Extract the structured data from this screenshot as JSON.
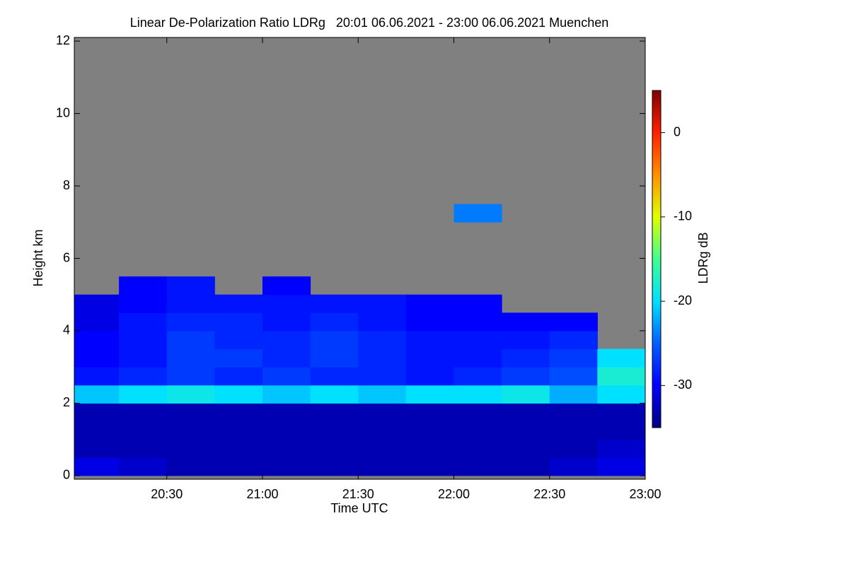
{
  "chart_data": {
    "type": "heatmap",
    "title": "Linear De-Polarization Ratio LDRg   20:01 06.06.2021 - 23:00 06.06.2021 Muenchen",
    "xlabel": "Time UTC",
    "ylabel": "Height km",
    "colorbar_label": "LDRg dB",
    "x": [
      20.125,
      20.375,
      20.625,
      20.875,
      21.125,
      21.375,
      21.625,
      21.875,
      22.125,
      22.375,
      22.625,
      22.875
    ],
    "y": [
      0.25,
      0.75,
      1.25,
      1.75,
      2.25,
      2.75,
      3.25,
      3.75,
      4.25,
      4.75,
      5.25,
      5.75,
      6.25,
      6.75,
      7.25,
      7.75,
      8.25,
      8.75,
      9.25,
      9.75,
      10.25,
      10.75,
      11.25,
      11.75
    ],
    "z": [
      [
        -31,
        -32,
        -33,
        -33,
        -33,
        -33,
        -33,
        -33,
        -33,
        -33,
        -32,
        -31
      ],
      [
        -33,
        -33,
        -33,
        -33,
        -33,
        -33,
        -33,
        -33,
        -33,
        -33,
        -33,
        -32
      ],
      [
        -33,
        -33,
        -33,
        -33,
        -33,
        -33,
        -33,
        -33,
        -33,
        -33,
        -33,
        -33
      ],
      [
        -33,
        -33,
        -33,
        -33,
        -33,
        -33,
        -33,
        -33,
        -33,
        -33,
        -33,
        -33
      ],
      [
        -21,
        -20,
        -19,
        -20,
        -21,
        -20,
        -21,
        -20,
        -20,
        -19,
        -22,
        -20
      ],
      [
        -29,
        -28,
        -27,
        -28,
        -27,
        -28,
        -28,
        -29,
        -28,
        -27,
        -26,
        -18
      ],
      [
        -30,
        -29,
        -27,
        -27,
        -28,
        -27,
        -28,
        -29,
        -29,
        -28,
        -27,
        -20
      ],
      [
        -30,
        -29,
        -27,
        -28,
        -28,
        -27,
        -28,
        -29,
        -29,
        -29,
        -28,
        null
      ],
      [
        -31,
        -29,
        -28,
        -28,
        -29,
        -28,
        -29,
        -30,
        -30,
        -30,
        -30,
        null
      ],
      [
        -31,
        -30,
        -29,
        -29,
        -29,
        -29,
        -29,
        -30,
        -30,
        null,
        null,
        null
      ],
      [
        null,
        -30,
        -29,
        null,
        -30,
        null,
        null,
        null,
        null,
        null,
        null,
        null
      ],
      [
        null,
        null,
        null,
        null,
        null,
        null,
        null,
        null,
        null,
        null,
        null,
        null
      ],
      [
        null,
        null,
        null,
        null,
        null,
        null,
        null,
        null,
        null,
        null,
        null,
        null
      ],
      [
        null,
        null,
        null,
        null,
        null,
        null,
        null,
        null,
        null,
        null,
        null,
        null
      ],
      [
        null,
        null,
        null,
        null,
        null,
        null,
        null,
        null,
        -24,
        null,
        null,
        null
      ],
      [
        null,
        null,
        null,
        null,
        null,
        null,
        null,
        null,
        null,
        null,
        null,
        null
      ],
      [
        null,
        null,
        null,
        null,
        null,
        null,
        null,
        null,
        null,
        null,
        null,
        null
      ],
      [
        null,
        null,
        null,
        null,
        null,
        null,
        null,
        null,
        null,
        null,
        null,
        null
      ],
      [
        null,
        null,
        null,
        null,
        null,
        null,
        null,
        null,
        null,
        null,
        null,
        null
      ],
      [
        null,
        null,
        null,
        null,
        null,
        null,
        null,
        null,
        null,
        null,
        null,
        null
      ],
      [
        null,
        null,
        null,
        null,
        null,
        null,
        null,
        null,
        null,
        null,
        null,
        null
      ],
      [
        null,
        null,
        null,
        null,
        null,
        null,
        null,
        null,
        null,
        null,
        null,
        null
      ],
      [
        null,
        null,
        null,
        null,
        null,
        null,
        null,
        null,
        null,
        null,
        null,
        null
      ],
      [
        null,
        null,
        null,
        null,
        null,
        null,
        null,
        null,
        null,
        null,
        null,
        null
      ]
    ],
    "xlim": [
      20.0167,
      23.0
    ],
    "xticks": [
      {
        "value": 20.5,
        "label": "20:30"
      },
      {
        "value": 21,
        "label": "21:00"
      },
      {
        "value": 21.5,
        "label": "21:30"
      },
      {
        "value": 22,
        "label": "22:00"
      },
      {
        "value": 22.5,
        "label": "22:30"
      },
      {
        "value": 23,
        "label": "23:00"
      }
    ],
    "ylim": [
      -0.1,
      12.1
    ],
    "yticks": [
      0,
      2,
      4,
      6,
      8,
      10,
      12
    ],
    "zlim": [
      -35,
      5
    ],
    "zticks": [
      0,
      -10,
      -20,
      -30
    ],
    "colormap": [
      "#00007f",
      "#0000ff",
      "#0060ff",
      "#00e0ff",
      "#40ff90",
      "#e0ff00",
      "#ff9000",
      "#ff2000",
      "#800000"
    ],
    "missing_color": "#808080"
  }
}
